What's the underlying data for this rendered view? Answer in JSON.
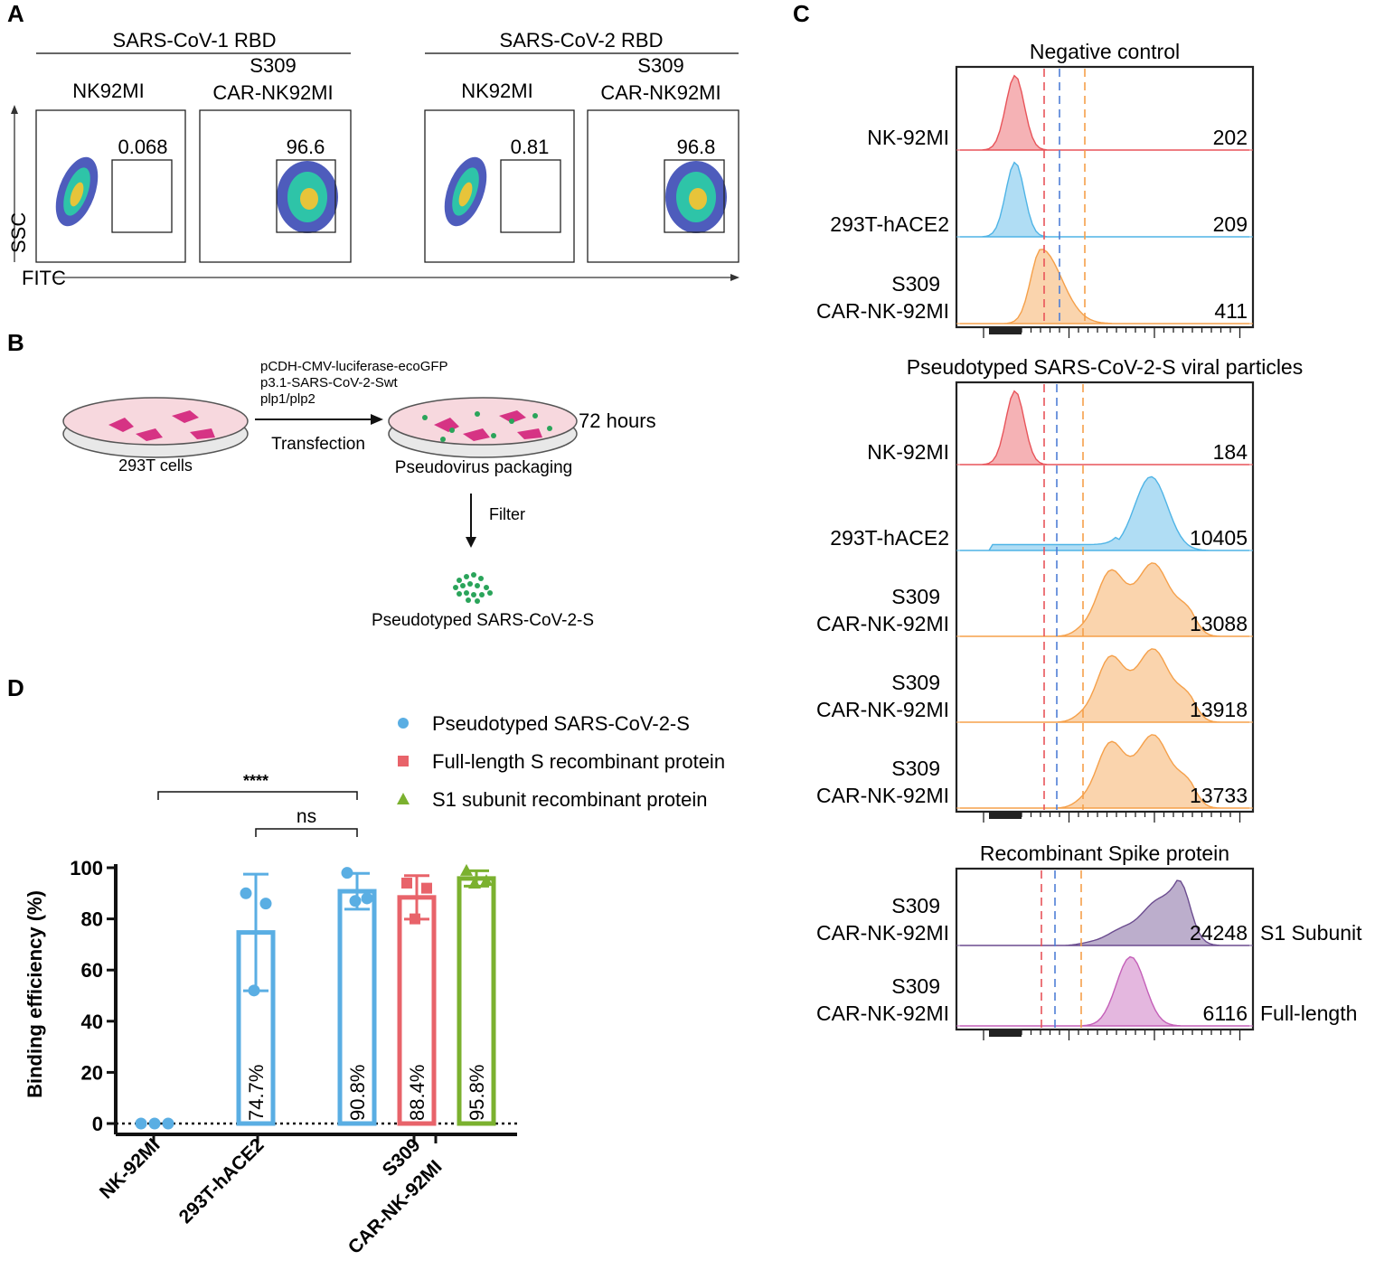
{
  "panel_letters": {
    "a": "A",
    "b": "B",
    "c": "C",
    "d": "D"
  },
  "panelA": {
    "groups": [
      "SARS-CoV-1 RBD",
      "SARS-CoV-2 RBD"
    ],
    "col_labels": [
      "NK92MI",
      "S309",
      "CAR-NK92MI",
      "NK92MI",
      "S309",
      "CAR-NK92MI"
    ],
    "gate_values": [
      "0.068",
      "96.6",
      "0.81",
      "96.8"
    ],
    "y_axis": "SSC",
    "x_axis": "FITC"
  },
  "panelB": {
    "plasmids": [
      "pCDH-CMV-luciferase-ecoGFP",
      "p3.1-SARS-CoV-2-Swt",
      "plp1/plp2"
    ],
    "step1": "Transfection",
    "cells": "293T cells",
    "packaging": "Pseudovirus packaging",
    "time": "72 hours",
    "step2": "Filter",
    "product": "Pseudotyped SARS-CoV-2-S"
  },
  "panelC": {
    "sections": [
      {
        "title": "Negative control",
        "rows": [
          {
            "label": [
              "NK-92MI"
            ],
            "value": "202",
            "color": "#e8545a"
          },
          {
            "label": [
              "293T-hACE2"
            ],
            "value": "209",
            "color": "#4fb4e6"
          },
          {
            "label": [
              "S309",
              "CAR-NK-92MI"
            ],
            "value": "411",
            "color": "#f5a04a"
          }
        ]
      },
      {
        "title": "Pseudotyped SARS-CoV-2-S viral particles",
        "rows": [
          {
            "label": [
              "NK-92MI"
            ],
            "value": "184",
            "color": "#e8545a"
          },
          {
            "label": [
              "293T-hACE2"
            ],
            "value": "10405",
            "color": "#4fb4e6"
          },
          {
            "label": [
              "S309",
              "CAR-NK-92MI"
            ],
            "value": "13088",
            "color": "#f5a04a"
          },
          {
            "label": [
              "S309",
              "CAR-NK-92MI"
            ],
            "value": "13918",
            "color": "#f5a04a"
          },
          {
            "label": [
              "S309",
              "CAR-NK-92MI"
            ],
            "value": "13733",
            "color": "#f5a04a"
          }
        ]
      },
      {
        "title": "Recombinant Spike protein",
        "rows": [
          {
            "label": [
              "S309",
              "CAR-NK-92MI"
            ],
            "value": "24248",
            "suffix": "S1 Subunit",
            "color": "#6b4c8f"
          },
          {
            "label": [
              "S309",
              "CAR-NK-92MI"
            ],
            "value": "6116",
            "suffix": "Full-length",
            "color": "#c45fb8"
          }
        ]
      }
    ]
  },
  "chart_data": {
    "type": "bar",
    "title": "",
    "ylabel": "Binding efficiency (%)",
    "ylim": [
      0,
      100
    ],
    "yticks": [
      "0",
      "20",
      "40",
      "60",
      "80",
      "100"
    ],
    "categories": [
      "NK-92MI",
      "293T-hACE2",
      "S309",
      "CAR-NK-92MI"
    ],
    "bars": [
      {
        "group": "NK-92MI",
        "series": "Pseudotyped SARS-CoV-2-S",
        "value": 0,
        "err": 0,
        "points": [
          0,
          0,
          0
        ],
        "label": ""
      },
      {
        "group": "293T-hACE2",
        "series": "Pseudotyped SARS-CoV-2-S",
        "value": 74.7,
        "err": 22.8,
        "points": [
          90,
          86,
          52
        ],
        "label": "74.7%"
      },
      {
        "group": "S309 CAR-NK-92MI",
        "series": "Pseudotyped SARS-CoV-2-S",
        "value": 90.8,
        "err": 7,
        "points": [
          98,
          88,
          87
        ],
        "label": "90.8%"
      },
      {
        "group": "S309 CAR-NK-92MI",
        "series": "Full-length S recombinant protein",
        "value": 88.4,
        "err": 8.5,
        "points": [
          94,
          92,
          80
        ],
        "label": "88.4%"
      },
      {
        "group": "S309 CAR-NK-92MI",
        "series": "S1 subunit recombinant protein",
        "value": 95.8,
        "err": 3,
        "points": [
          99,
          95,
          94
        ],
        "label": "95.8%"
      }
    ],
    "legend": [
      {
        "name": "Pseudotyped SARS-CoV-2-S",
        "color": "#5aaee3",
        "marker": "circle"
      },
      {
        "name": "Full-length S recombinant protein",
        "color": "#e8636a",
        "marker": "square"
      },
      {
        "name": "S1 subunit recombinant protein",
        "color": "#7bb12f",
        "marker": "triangle"
      }
    ],
    "significance": [
      {
        "label": "****",
        "from": "NK-92MI",
        "to": "S309 CAR-NK-92MI"
      },
      {
        "label": "ns",
        "from": "293T-hACE2",
        "to": "S309 CAR-NK-92MI"
      }
    ]
  }
}
